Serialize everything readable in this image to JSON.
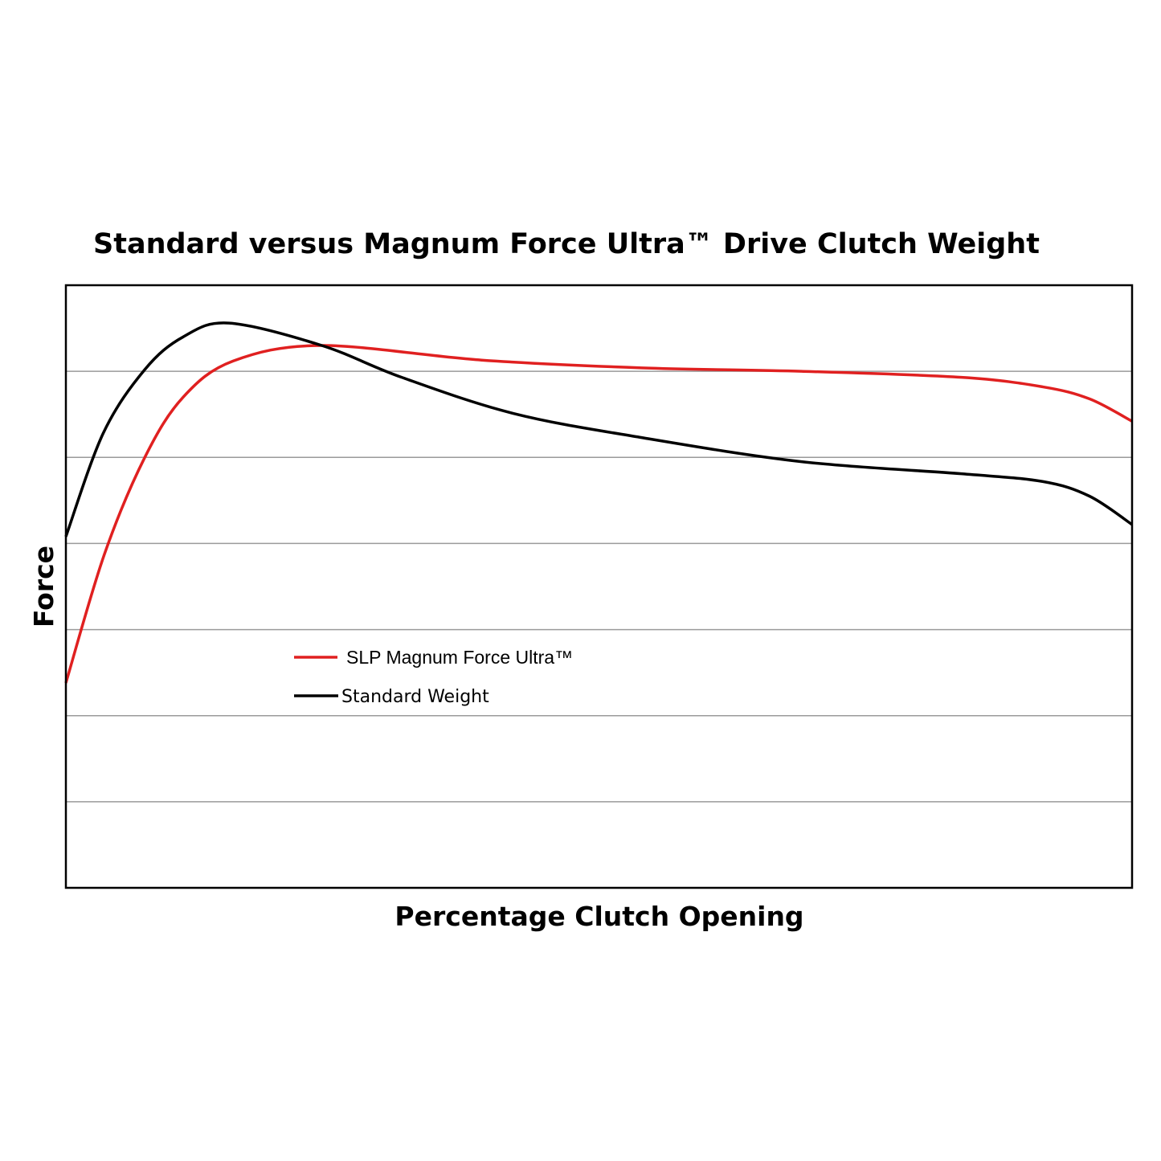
{
  "chart_data": {
    "type": "line",
    "title": "Standard versus Magnum Force Ultra™ Drive Clutch Weight",
    "xlabel": "Percentage Clutch Opening",
    "ylabel": "Force",
    "xlim": [
      0,
      100
    ],
    "ylim": [
      0,
      7
    ],
    "grid": "horizontal",
    "gridlines_y": [
      1,
      2,
      3,
      4,
      5,
      6
    ],
    "tick_labels_shown": false,
    "legend_placement": "center-left",
    "series": [
      {
        "name": "SLP Magnum Force Ultra™",
        "color": "#e02020",
        "x": [
          0,
          3.6,
          7.4,
          11,
          15.7,
          24,
          39,
          54,
          69,
          84,
          91.6,
          96,
          100
        ],
        "y": [
          2.38,
          3.87,
          5.0,
          5.7,
          6.12,
          6.3,
          6.13,
          6.04,
          6.0,
          5.93,
          5.82,
          5.68,
          5.42
        ]
      },
      {
        "name": "Standard Weight",
        "color": "#000000",
        "x": [
          0,
          3.5,
          7.4,
          11,
          15.3,
          24,
          31.5,
          42,
          54,
          69,
          84,
          91.6,
          96,
          100
        ],
        "y": [
          4.08,
          5.28,
          6.02,
          6.4,
          6.56,
          6.3,
          5.93,
          5.51,
          5.23,
          4.95,
          4.81,
          4.72,
          4.55,
          4.22
        ]
      }
    ]
  }
}
